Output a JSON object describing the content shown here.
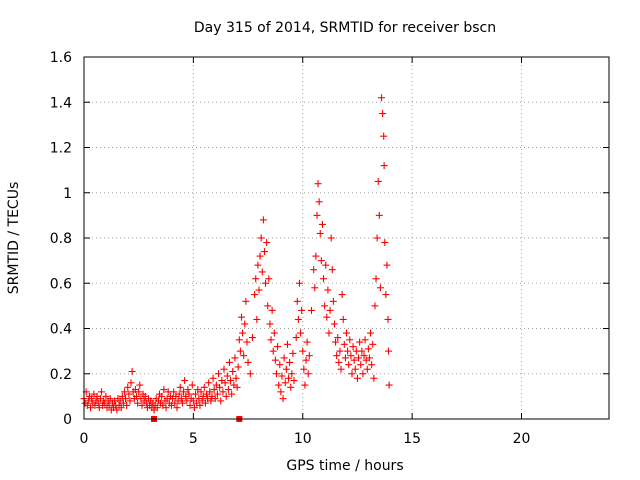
{
  "chart_data": {
    "type": "scatter",
    "title": "Day 315 of 2014, SRMTID for receiver bscn",
    "xlabel": "GPS time / hours",
    "ylabel": "SRMTID / TECUs",
    "xlim": [
      0,
      24
    ],
    "ylim": [
      0,
      1.6
    ],
    "xticks": [
      0,
      5,
      10,
      15,
      20
    ],
    "yticks": [
      0,
      0.2,
      0.4,
      0.6,
      0.8,
      1,
      1.2,
      1.4,
      1.6
    ],
    "xtick_labels": [
      "0",
      "5",
      "10",
      "15",
      "20"
    ],
    "ytick_labels": [
      "0",
      "0.2",
      "0.4",
      "0.6",
      "0.8",
      "1",
      "1.2",
      "1.4",
      "1.6"
    ],
    "grid": true,
    "marker": "+",
    "color": "#ff0000",
    "series": [
      {
        "name": "SRMTID",
        "points": [
          [
            0.0,
            0.09
          ],
          [
            0.05,
            0.07
          ],
          [
            0.1,
            0.12
          ],
          [
            0.15,
            0.06
          ],
          [
            0.2,
            0.08
          ],
          [
            0.25,
            0.1
          ],
          [
            0.3,
            0.05
          ],
          [
            0.35,
            0.09
          ],
          [
            0.4,
            0.07
          ],
          [
            0.45,
            0.11
          ],
          [
            0.5,
            0.06
          ],
          [
            0.55,
            0.08
          ],
          [
            0.6,
            0.1
          ],
          [
            0.65,
            0.07
          ],
          [
            0.7,
            0.05
          ],
          [
            0.75,
            0.09
          ],
          [
            0.8,
            0.12
          ],
          [
            0.85,
            0.06
          ],
          [
            0.9,
            0.08
          ],
          [
            0.95,
            0.07
          ],
          [
            1.0,
            0.1
          ],
          [
            1.05,
            0.05
          ],
          [
            1.1,
            0.08
          ],
          [
            1.15,
            0.06
          ],
          [
            1.2,
            0.09
          ],
          [
            1.25,
            0.04
          ],
          [
            1.3,
            0.07
          ],
          [
            1.35,
            0.05
          ],
          [
            1.4,
            0.08
          ],
          [
            1.45,
            0.06
          ],
          [
            1.5,
            0.04
          ],
          [
            1.55,
            0.09
          ],
          [
            1.6,
            0.06
          ],
          [
            1.65,
            0.08
          ],
          [
            1.7,
            0.05
          ],
          [
            1.75,
            0.1
          ],
          [
            1.8,
            0.07
          ],
          [
            1.85,
            0.12
          ],
          [
            1.9,
            0.09
          ],
          [
            1.95,
            0.06
          ],
          [
            2.0,
            0.14
          ],
          [
            2.05,
            0.11
          ],
          [
            2.1,
            0.08
          ],
          [
            2.15,
            0.16
          ],
          [
            2.2,
            0.21
          ],
          [
            2.25,
            0.12
          ],
          [
            2.3,
            0.09
          ],
          [
            2.35,
            0.13
          ],
          [
            2.4,
            0.1
          ],
          [
            2.45,
            0.07
          ],
          [
            2.5,
            0.12
          ],
          [
            2.55,
            0.15
          ],
          [
            2.6,
            0.09
          ],
          [
            2.65,
            0.06
          ],
          [
            2.7,
            0.11
          ],
          [
            2.75,
            0.08
          ],
          [
            2.8,
            0.1
          ],
          [
            2.85,
            0.07
          ],
          [
            2.9,
            0.05
          ],
          [
            2.95,
            0.09
          ],
          [
            3.0,
            0.06
          ],
          [
            3.05,
            0.08
          ],
          [
            3.1,
            0.05
          ],
          [
            3.15,
            0.07
          ],
          [
            3.2,
            0.04
          ],
          [
            3.25,
            0.06
          ],
          [
            3.3,
            0.09
          ],
          [
            3.35,
            0.05
          ],
          [
            3.4,
            0.08
          ],
          [
            3.45,
            0.11
          ],
          [
            3.5,
            0.07
          ],
          [
            3.55,
            0.1
          ],
          [
            3.6,
            0.06
          ],
          [
            3.65,
            0.13
          ],
          [
            3.7,
            0.08
          ],
          [
            3.75,
            0.05
          ],
          [
            3.8,
            0.09
          ],
          [
            3.85,
            0.12
          ],
          [
            3.9,
            0.07
          ],
          [
            3.95,
            0.1
          ],
          [
            4.0,
            0.06
          ],
          [
            4.05,
            0.09
          ],
          [
            4.1,
            0.12
          ],
          [
            4.15,
            0.07
          ],
          [
            4.2,
            0.1
          ],
          [
            4.25,
            0.05
          ],
          [
            4.3,
            0.08
          ],
          [
            4.35,
            0.11
          ],
          [
            4.4,
            0.14
          ],
          [
            4.45,
            0.09
          ],
          [
            4.5,
            0.07
          ],
          [
            4.55,
            0.12
          ],
          [
            4.6,
            0.17
          ],
          [
            4.65,
            0.1
          ],
          [
            4.7,
            0.08
          ],
          [
            4.75,
            0.13
          ],
          [
            4.8,
            0.11
          ],
          [
            4.85,
            0.06
          ],
          [
            4.9,
            0.09
          ],
          [
            4.95,
            0.15
          ],
          [
            5.0,
            0.08
          ],
          [
            5.05,
            0.05
          ],
          [
            5.1,
            0.11
          ],
          [
            5.15,
            0.07
          ],
          [
            5.2,
            0.13
          ],
          [
            5.25,
            0.09
          ],
          [
            5.3,
            0.06
          ],
          [
            5.35,
            0.12
          ],
          [
            5.4,
            0.08
          ],
          [
            5.45,
            0.1
          ],
          [
            5.5,
            0.14
          ],
          [
            5.55,
            0.07
          ],
          [
            5.6,
            0.11
          ],
          [
            5.65,
            0.09
          ],
          [
            5.7,
            0.16
          ],
          [
            5.75,
            0.12
          ],
          [
            5.8,
            0.08
          ],
          [
            5.85,
            0.1
          ],
          [
            5.9,
            0.18
          ],
          [
            5.95,
            0.13
          ],
          [
            6.0,
            0.09
          ],
          [
            6.05,
            0.15
          ],
          [
            6.1,
            0.11
          ],
          [
            6.15,
            0.2
          ],
          [
            6.2,
            0.14
          ],
          [
            6.25,
            0.08
          ],
          [
            6.3,
            0.17
          ],
          [
            6.35,
            0.12
          ],
          [
            6.4,
            0.22
          ],
          [
            6.45,
            0.16
          ],
          [
            6.5,
            0.1
          ],
          [
            6.55,
            0.19
          ],
          [
            6.6,
            0.13
          ],
          [
            6.65,
            0.25
          ],
          [
            6.7,
            0.17
          ],
          [
            6.75,
            0.11
          ],
          [
            6.8,
            0.21
          ],
          [
            6.85,
            0.15
          ],
          [
            6.9,
            0.27
          ],
          [
            6.95,
            0.18
          ],
          [
            7.0,
            0.14
          ],
          [
            7.05,
            0.23
          ],
          [
            7.1,
            0.35
          ],
          [
            7.15,
            0.3
          ],
          [
            7.2,
            0.45
          ],
          [
            7.25,
            0.38
          ],
          [
            7.3,
            0.28
          ],
          [
            7.35,
            0.42
          ],
          [
            7.4,
            0.52
          ],
          [
            7.45,
            0.34
          ],
          [
            7.5,
            0.25
          ],
          [
            7.6,
            0.2
          ],
          [
            7.7,
            0.36
          ],
          [
            7.8,
            0.55
          ],
          [
            7.85,
            0.62
          ],
          [
            7.9,
            0.44
          ],
          [
            7.95,
            0.68
          ],
          [
            8.0,
            0.57
          ],
          [
            8.05,
            0.72
          ],
          [
            8.1,
            0.8
          ],
          [
            8.15,
            0.65
          ],
          [
            8.2,
            0.88
          ],
          [
            8.25,
            0.74
          ],
          [
            8.3,
            0.6
          ],
          [
            8.35,
            0.78
          ],
          [
            8.4,
            0.5
          ],
          [
            8.45,
            0.62
          ],
          [
            8.5,
            0.42
          ],
          [
            8.55,
            0.35
          ],
          [
            8.6,
            0.48
          ],
          [
            8.65,
            0.3
          ],
          [
            8.7,
            0.38
          ],
          [
            8.75,
            0.26
          ],
          [
            8.8,
            0.2
          ],
          [
            8.85,
            0.32
          ],
          [
            8.9,
            0.15
          ],
          [
            8.95,
            0.24
          ],
          [
            9.0,
            0.12
          ],
          [
            9.05,
            0.19
          ],
          [
            9.1,
            0.09
          ],
          [
            9.15,
            0.27
          ],
          [
            9.2,
            0.16
          ],
          [
            9.25,
            0.22
          ],
          [
            9.3,
            0.33
          ],
          [
            9.35,
            0.18
          ],
          [
            9.4,
            0.25
          ],
          [
            9.45,
            0.14
          ],
          [
            9.5,
            0.2
          ],
          [
            9.55,
            0.29
          ],
          [
            9.6,
            0.17
          ],
          [
            9.7,
            0.36
          ],
          [
            9.75,
            0.52
          ],
          [
            9.8,
            0.44
          ],
          [
            9.85,
            0.6
          ],
          [
            9.9,
            0.38
          ],
          [
            9.95,
            0.48
          ],
          [
            10.0,
            0.3
          ],
          [
            10.05,
            0.22
          ],
          [
            10.1,
            0.15
          ],
          [
            10.15,
            0.26
          ],
          [
            10.2,
            0.34
          ],
          [
            10.25,
            0.2
          ],
          [
            10.3,
            0.28
          ],
          [
            10.4,
            0.48
          ],
          [
            10.5,
            0.66
          ],
          [
            10.55,
            0.58
          ],
          [
            10.6,
            0.72
          ],
          [
            10.65,
            0.9
          ],
          [
            10.7,
            1.04
          ],
          [
            10.75,
            0.96
          ],
          [
            10.8,
            0.82
          ],
          [
            10.85,
            0.7
          ],
          [
            10.9,
            0.86
          ],
          [
            10.95,
            0.62
          ],
          [
            11.0,
            0.5
          ],
          [
            11.05,
            0.68
          ],
          [
            11.1,
            0.45
          ],
          [
            11.15,
            0.57
          ],
          [
            11.2,
            0.38
          ],
          [
            11.25,
            0.48
          ],
          [
            11.3,
            0.8
          ],
          [
            11.35,
            0.66
          ],
          [
            11.4,
            0.52
          ],
          [
            11.45,
            0.42
          ],
          [
            11.5,
            0.34
          ],
          [
            11.55,
            0.28
          ],
          [
            11.6,
            0.36
          ],
          [
            11.65,
            0.25
          ],
          [
            11.7,
            0.3
          ],
          [
            11.75,
            0.22
          ],
          [
            11.8,
            0.55
          ],
          [
            11.85,
            0.44
          ],
          [
            11.9,
            0.33
          ],
          [
            11.95,
            0.27
          ],
          [
            12.0,
            0.38
          ],
          [
            12.05,
            0.3
          ],
          [
            12.1,
            0.24
          ],
          [
            12.15,
            0.35
          ],
          [
            12.2,
            0.28
          ],
          [
            12.25,
            0.2
          ],
          [
            12.3,
            0.32
          ],
          [
            12.35,
            0.26
          ],
          [
            12.4,
            0.22
          ],
          [
            12.45,
            0.3
          ],
          [
            12.5,
            0.18
          ],
          [
            12.55,
            0.27
          ],
          [
            12.6,
            0.34
          ],
          [
            12.65,
            0.24
          ],
          [
            12.7,
            0.3
          ],
          [
            12.75,
            0.2
          ],
          [
            12.8,
            0.28
          ],
          [
            12.85,
            0.35
          ],
          [
            12.9,
            0.26
          ],
          [
            12.95,
            0.22
          ],
          [
            13.0,
            0.31
          ],
          [
            13.05,
            0.27
          ],
          [
            13.1,
            0.38
          ],
          [
            13.15,
            0.24
          ],
          [
            13.2,
            0.33
          ],
          [
            13.25,
            0.18
          ],
          [
            13.3,
            0.5
          ],
          [
            13.35,
            0.62
          ],
          [
            13.4,
            0.8
          ],
          [
            13.45,
            1.05
          ],
          [
            13.5,
            0.9
          ],
          [
            13.55,
            0.58
          ],
          [
            13.6,
            1.42
          ],
          [
            13.65,
            1.35
          ],
          [
            13.7,
            1.25
          ],
          [
            13.72,
            1.12
          ],
          [
            13.75,
            0.78
          ],
          [
            13.8,
            0.55
          ],
          [
            13.85,
            0.68
          ],
          [
            13.9,
            0.44
          ],
          [
            13.92,
            0.3
          ],
          [
            13.95,
            0.15
          ]
        ]
      }
    ],
    "baseline_marks_x": [
      3.2,
      7.1
    ]
  }
}
